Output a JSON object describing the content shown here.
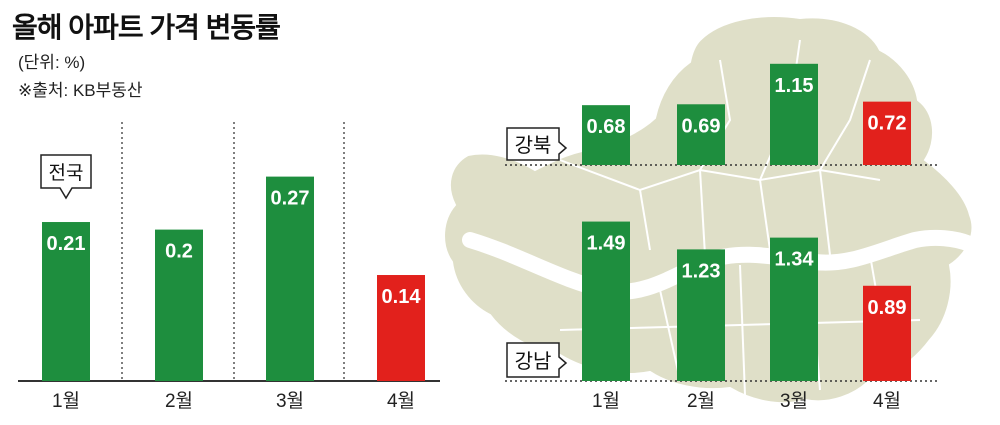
{
  "title": "올해 아파트 가격 변동률",
  "unit": "(단위: %)",
  "source": "※출처: KB부동산",
  "colors": {
    "normal": "#1e8e3e",
    "highlight": "#e2211c",
    "map_fill": "#dfdfc8",
    "map_stroke": "#ffffff"
  },
  "chart_data": [
    {
      "type": "bar",
      "name": "전국",
      "categories": [
        "1월",
        "2월",
        "3월",
        "4월"
      ],
      "values": [
        0.21,
        0.2,
        0.27,
        0.14
      ],
      "labels": [
        "0.21",
        "0.2",
        "0.27",
        "0.14"
      ],
      "highlight_index": 3
    },
    {
      "type": "bar",
      "name": "강북",
      "categories": [
        "1월",
        "2월",
        "3월",
        "4월"
      ],
      "values": [
        0.68,
        0.69,
        1.15,
        0.72
      ],
      "labels": [
        "0.68",
        "0.69",
        "1.15",
        "0.72"
      ],
      "highlight_index": 3
    },
    {
      "type": "bar",
      "name": "강남",
      "categories": [
        "1월",
        "2월",
        "3월",
        "4월"
      ],
      "values": [
        1.49,
        1.23,
        1.34,
        0.89
      ],
      "labels": [
        "1.49",
        "1.23",
        "1.34",
        "0.89"
      ],
      "highlight_index": 3
    }
  ]
}
